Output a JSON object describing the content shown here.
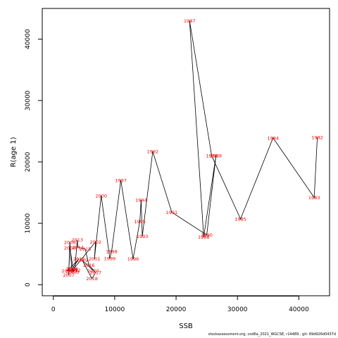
{
  "chart_data": {
    "type": "line",
    "xlabel": "SSB",
    "ylabel": "R(age 1)",
    "xlim": [
      -1800,
      45000
    ],
    "ylim": [
      -1800,
      45000
    ],
    "x_ticks": [
      0,
      10000,
      20000,
      30000,
      40000
    ],
    "y_ticks": [
      0,
      10000,
      20000,
      30000,
      40000
    ],
    "x_tick_labels": [
      "0",
      "10000",
      "20000",
      "30000",
      "40000"
    ],
    "y_tick_labels": [
      "0",
      "10000",
      "20000",
      "30000",
      "40000"
    ],
    "grid": false,
    "line_color": "#000000",
    "label_color": "#ff0000",
    "points": [
      {
        "year": "1982",
        "x": 43000,
        "y": 24000
      },
      {
        "year": "1983",
        "x": 42500,
        "y": 14200
      },
      {
        "year": "1984",
        "x": 35800,
        "y": 23900
      },
      {
        "year": "1985",
        "x": 30500,
        "y": 10700
      },
      {
        "year": "1986",
        "x": 25800,
        "y": 21000
      },
      {
        "year": "1987",
        "x": 22200,
        "y": 43000
      },
      {
        "year": "1988",
        "x": 24500,
        "y": 7800
      },
      {
        "year": "1989",
        "x": 26500,
        "y": 21000
      },
      {
        "year": "1990",
        "x": 25000,
        "y": 8100
      },
      {
        "year": "1991",
        "x": 19300,
        "y": 11800
      },
      {
        "year": "1992",
        "x": 16200,
        "y": 21700
      },
      {
        "year": "1993",
        "x": 14500,
        "y": 7900
      },
      {
        "year": "1994",
        "x": 14300,
        "y": 13800
      },
      {
        "year": "1995",
        "x": 14100,
        "y": 10300
      },
      {
        "year": "1996",
        "x": 13000,
        "y": 4200
      },
      {
        "year": "1997",
        "x": 11000,
        "y": 17000
      },
      {
        "year": "1998",
        "x": 9500,
        "y": 5400
      },
      {
        "year": "1999",
        "x": 9200,
        "y": 4300
      },
      {
        "year": "2000",
        "x": 7800,
        "y": 14500
      },
      {
        "year": "2001",
        "x": 6700,
        "y": 4200
      },
      {
        "year": "2002",
        "x": 6900,
        "y": 7000
      },
      {
        "year": "2003",
        "x": 3000,
        "y": 2200
      },
      {
        "year": "2004",
        "x": 3100,
        "y": 2600
      },
      {
        "year": "2005",
        "x": 3300,
        "y": 2100
      },
      {
        "year": "2006",
        "x": 2700,
        "y": 6000
      },
      {
        "year": "2007",
        "x": 2500,
        "y": 1600
      },
      {
        "year": "2008",
        "x": 2700,
        "y": 6900
      },
      {
        "year": "2009",
        "x": 3000,
        "y": 2500
      },
      {
        "year": "2010",
        "x": 4200,
        "y": 4200
      },
      {
        "year": "2011",
        "x": 2300,
        "y": 2300
      },
      {
        "year": "2012",
        "x": 3500,
        "y": 2400
      },
      {
        "year": "2013",
        "x": 3900,
        "y": 7300
      },
      {
        "year": "2014",
        "x": 4000,
        "y": 6100
      },
      {
        "year": "2015",
        "x": 5200,
        "y": 5800
      },
      {
        "year": "2016",
        "x": 5800,
        "y": 3200
      },
      {
        "year": "2017",
        "x": 6900,
        "y": 2000
      },
      {
        "year": "2018",
        "x": 6300,
        "y": 1000
      },
      {
        "year": "2019",
        "x": 4700,
        "y": 4000
      },
      {
        "year": "2020",
        "x": 6500,
        "y": 2300
      }
    ]
  },
  "footer": "stockassessment.org,  cod6a_2021_WGCSE,  r14489 ,  git: 69d926d0437d"
}
